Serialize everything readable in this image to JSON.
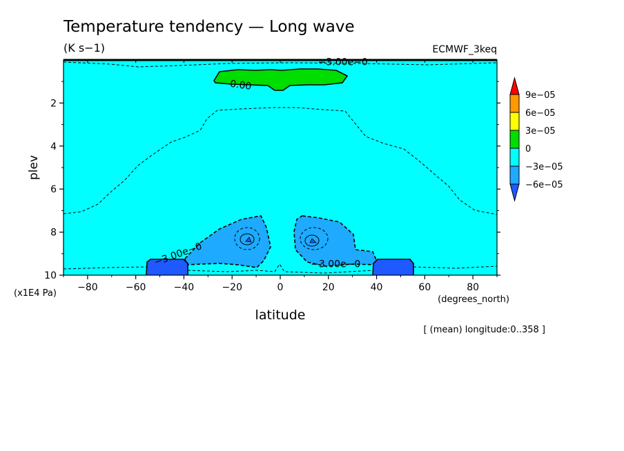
{
  "chart_data": {
    "type": "contour",
    "title": "Temperature tendency — Long wave",
    "units": "(K s−1)",
    "dataset": "ECMWF_3keq",
    "xlabel": "latitude",
    "xunits": "(degrees_north)",
    "ylabel": "plev",
    "yunits": "(x1E4 Pa)",
    "footnote": "[ (mean) longitude:0..358 ]",
    "xlim": [
      -90,
      90
    ],
    "ylim": [
      10,
      0
    ],
    "x_ticks": [
      {
        "value": -80,
        "label": "−80"
      },
      {
        "value": -60,
        "label": "−60"
      },
      {
        "value": -40,
        "label": "−40"
      },
      {
        "value": -20,
        "label": "−20"
      },
      {
        "value": 0,
        "label": "0"
      },
      {
        "value": 20,
        "label": "20"
      },
      {
        "value": 40,
        "label": "40"
      },
      {
        "value": 60,
        "label": "60"
      },
      {
        "value": 80,
        "label": "80"
      }
    ],
    "y_ticks": [
      {
        "value": 2,
        "label": "2"
      },
      {
        "value": 4,
        "label": "4"
      },
      {
        "value": 6,
        "label": "6"
      },
      {
        "value": 8,
        "label": "8"
      },
      {
        "value": 10,
        "label": "10"
      }
    ],
    "colorbar": {
      "levels": [
        {
          "value": 9e-05,
          "label": "9e−05"
        },
        {
          "value": 6e-05,
          "label": "6e−05"
        },
        {
          "value": 3e-05,
          "label": "3e−05"
        },
        {
          "value": 0,
          "label": "0"
        },
        {
          "value": -3e-05,
          "label": "−3e−05"
        },
        {
          "value": -6e-05,
          "label": "−6e−05"
        }
      ],
      "colors": [
        "#ff0000",
        "#ff9900",
        "#ffff00",
        "#00dd00",
        "#00ffff",
        "#1eaaff",
        "#1e5aff"
      ]
    },
    "contour_labels": [
      {
        "text": "0.00",
        "lat": -21,
        "plev": 1.08
      },
      {
        "text": "−3.00e−0",
        "lat": 26,
        "plev": 0.08
      },
      {
        "text": "−3.00e−0",
        "lat": -42,
        "plev": 9.0
      },
      {
        "text": "−3.00e−0",
        "lat": 23,
        "plev": 9.47
      }
    ],
    "fields": [
      {
        "name": "background",
        "range": "-3e-05..0",
        "color": "#00ffff"
      },
      {
        "name": "upper positive band",
        "range": "0..3e-05",
        "lat_range": [
          -27,
          28
        ],
        "plev_range": [
          0.45,
          1.45
        ],
        "color": "#00dd00"
      },
      {
        "name": "southern low-level cooling",
        "range": "-6e-05..-3e-05",
        "lat_range": [
          -38,
          -5
        ],
        "plev_range": [
          7.3,
          9.8
        ],
        "color": "#1eaaff"
      },
      {
        "name": "northern low-level cooling",
        "range": "-6e-05..-3e-05",
        "lat_range": [
          5,
          40
        ],
        "plev_range": [
          7.3,
          9.8
        ],
        "color": "#1eaaff"
      },
      {
        "name": "southern surface max",
        "range": "< -6e-05",
        "lat_range": [
          -55,
          -39
        ],
        "plev_range": [
          9.2,
          10
        ],
        "color": "#1e5aff"
      },
      {
        "name": "northern surface max",
        "range": "< -6e-05",
        "lat_range": [
          39,
          55
        ],
        "plev_range": [
          9.2,
          10
        ],
        "color": "#1e5aff"
      }
    ]
  }
}
